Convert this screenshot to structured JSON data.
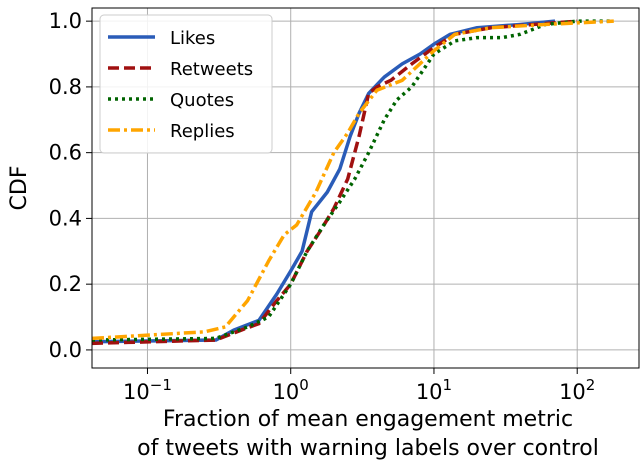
{
  "chart_data": {
    "type": "line",
    "xlabel": [
      "Fraction of mean engagement metric",
      "of tweets with warning labels over control"
    ],
    "ylabel": "CDF",
    "xscale": "log",
    "xlim": [
      0.041,
      270
    ],
    "ylim": [
      -0.055,
      1.04
    ],
    "xticks": [
      {
        "value": 0.1,
        "label": "10",
        "exponent": "−1"
      },
      {
        "value": 1,
        "label": "10",
        "exponent": "0"
      },
      {
        "value": 10,
        "label": "10",
        "exponent": "1"
      },
      {
        "value": 100,
        "label": "10",
        "exponent": "2"
      }
    ],
    "yticks": [
      {
        "value": 0,
        "label": "0.0"
      },
      {
        "value": 0.2,
        "label": "0.2"
      },
      {
        "value": 0.4,
        "label": "0.4"
      },
      {
        "value": 0.6,
        "label": "0.6"
      },
      {
        "value": 0.8,
        "label": "0.8"
      },
      {
        "value": 1,
        "label": "1.0"
      }
    ],
    "grid": true,
    "legend": "upper left",
    "series": [
      {
        "name": "Likes",
        "color": "#2a5cb8",
        "dash": "solid",
        "x": [
          0.041,
          0.3,
          0.4,
          0.6,
          0.8,
          1.0,
          1.2,
          1.4,
          1.8,
          2.2,
          2.6,
          3.0,
          3.5,
          4.5,
          6,
          8,
          10,
          13,
          20,
          40,
          70
        ],
        "values": [
          0.025,
          0.03,
          0.06,
          0.09,
          0.17,
          0.24,
          0.3,
          0.42,
          0.48,
          0.55,
          0.65,
          0.72,
          0.78,
          0.83,
          0.87,
          0.9,
          0.93,
          0.96,
          0.98,
          0.99,
          1.0
        ]
      },
      {
        "name": "Retweets",
        "color": "#a01010",
        "dash": "dashed",
        "x": [
          0.041,
          0.3,
          0.45,
          0.6,
          0.8,
          1.0,
          1.3,
          1.6,
          2.0,
          2.5,
          3.0,
          3.5,
          4.0,
          5,
          7,
          10,
          14,
          25,
          50,
          100
        ],
        "values": [
          0.02,
          0.03,
          0.06,
          0.08,
          0.15,
          0.2,
          0.3,
          0.36,
          0.43,
          0.52,
          0.65,
          0.78,
          0.8,
          0.82,
          0.87,
          0.92,
          0.96,
          0.98,
          0.99,
          1.0
        ]
      },
      {
        "name": "Quotes",
        "color": "#006400",
        "dash": "dotted",
        "x": [
          0.041,
          0.3,
          0.5,
          0.7,
          1.0,
          1.3,
          1.7,
          2.2,
          2.8,
          3.5,
          4.5,
          5.5,
          7,
          10,
          14,
          20,
          30,
          40,
          60,
          100,
          170
        ],
        "values": [
          0.03,
          0.035,
          0.07,
          0.1,
          0.2,
          0.3,
          0.38,
          0.45,
          0.52,
          0.6,
          0.7,
          0.76,
          0.8,
          0.9,
          0.94,
          0.95,
          0.95,
          0.96,
          0.99,
          1.0,
          1.0
        ]
      },
      {
        "name": "Replies",
        "color": "#ffa500",
        "dash": "dashdot",
        "x": [
          0.041,
          0.25,
          0.35,
          0.5,
          0.7,
          0.9,
          1.1,
          1.5,
          2.0,
          2.5,
          3.0,
          4.0,
          6,
          10,
          14,
          25,
          60,
          180
        ],
        "values": [
          0.035,
          0.055,
          0.07,
          0.15,
          0.27,
          0.35,
          0.38,
          0.48,
          0.6,
          0.66,
          0.72,
          0.79,
          0.82,
          0.91,
          0.96,
          0.98,
          0.99,
          1.0
        ]
      }
    ]
  }
}
